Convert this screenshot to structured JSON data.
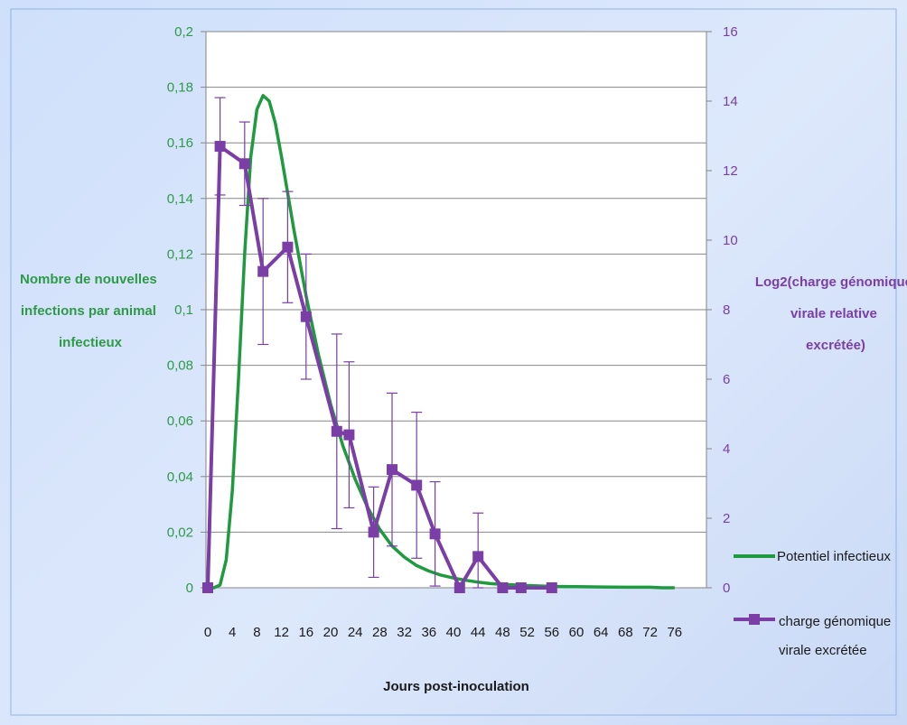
{
  "chart_data": {
    "type": "line",
    "title": "",
    "xlabel": "Jours post-inoculation",
    "ylabel_left": [
      "Nombre de nouvelles",
      "infections par animal",
      "infectieux"
    ],
    "ylabel_right": [
      "Log2(charge génomique",
      "virale relative",
      "excrétée)"
    ],
    "x_ticks": [
      "0",
      "4",
      "8",
      "12",
      "16",
      "20",
      "24",
      "28",
      "32",
      "36",
      "40",
      "44",
      "48",
      "52",
      "56",
      "60",
      "64",
      "68",
      "72",
      "76"
    ],
    "y_left_ticks": [
      "0",
      "0,02",
      "0,04",
      "0,06",
      "0,08",
      "0,1",
      "0,12",
      "0,14",
      "0,16",
      "0,18",
      "0,2"
    ],
    "y_right_ticks": [
      "0",
      "2",
      "4",
      "6",
      "8",
      "10",
      "12",
      "14",
      "16"
    ],
    "xlim": [
      0,
      77
    ],
    "ylim_left": [
      0,
      0.2
    ],
    "ylim_right": [
      0,
      16
    ],
    "grid": true,
    "legend_position": "right",
    "series": [
      {
        "name": "Potentiel infectieux",
        "axis": "left",
        "color": "#1f9a3f",
        "marker": "none",
        "x": [
          0,
          1,
          2,
          3,
          4,
          5,
          6,
          7,
          8,
          9,
          10,
          11,
          12,
          13,
          14,
          15,
          16,
          18,
          20,
          22,
          24,
          26,
          28,
          30,
          32,
          34,
          36,
          38,
          40,
          42,
          44,
          46,
          48,
          50,
          52,
          56,
          60,
          64,
          68,
          72,
          74,
          76
        ],
        "values": [
          0,
          0,
          0.001,
          0.01,
          0.035,
          0.075,
          0.12,
          0.155,
          0.172,
          0.177,
          0.175,
          0.167,
          0.155,
          0.142,
          0.129,
          0.117,
          0.105,
          0.084,
          0.066,
          0.051,
          0.039,
          0.029,
          0.021,
          0.015,
          0.011,
          0.008,
          0.006,
          0.0045,
          0.0035,
          0.0027,
          0.002,
          0.0015,
          0.0012,
          0.001,
          0.0008,
          0.0005,
          0.0004,
          0.0003,
          0.0002,
          0.0002,
          0,
          0
        ]
      },
      {
        "name": "charge génomique virale excrétée",
        "axis": "right",
        "color": "#7a3ea6",
        "marker": "square",
        "x": [
          0,
          2,
          6,
          9,
          13,
          16,
          21,
          23,
          27,
          30,
          34,
          37,
          41,
          44,
          48,
          51,
          56
        ],
        "values": [
          0,
          12.7,
          12.2,
          9.1,
          9.8,
          7.8,
          4.5,
          4.4,
          1.6,
          3.4,
          2.95,
          1.55,
          0,
          0.9,
          0,
          0,
          0
        ],
        "error": [
          0,
          1.4,
          1.2,
          2.1,
          1.6,
          1.8,
          2.8,
          2.1,
          1.3,
          2.2,
          2.1,
          1.5,
          0,
          1.25,
          0,
          0,
          0
        ]
      }
    ],
    "legend_labels": [
      [
        "Potentiel infectieux"
      ],
      [
        "charge génomique",
        "virale excrétée"
      ]
    ]
  }
}
